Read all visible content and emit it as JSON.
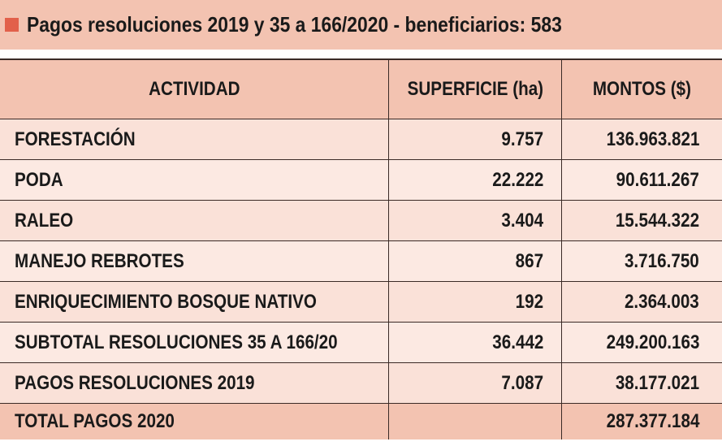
{
  "title": "Pagos resoluciones 2019 y 35 a 166/2020 - beneficiarios: 583",
  "colors": {
    "header_bg": "#f3c3b1",
    "row_bg_a": "#fae1d8",
    "row_bg_b": "#fce9e2",
    "accent_square": "#e2604a"
  },
  "table": {
    "headers": [
      "ACTIVIDAD",
      "SUPERFICIE (ha)",
      "MONTOS  ($)"
    ],
    "rows": [
      {
        "actividad": "FORESTACIÓN",
        "superficie": "9.757",
        "montos": "136.963.821"
      },
      {
        "actividad": "PODA",
        "superficie": "22.222",
        "montos": "90.611.267"
      },
      {
        "actividad": "RALEO",
        "superficie": "3.404",
        "montos": "15.544.322"
      },
      {
        "actividad": "MANEJO REBROTES",
        "superficie": "867",
        "montos": "3.716.750"
      },
      {
        "actividad": "ENRIQUECIMIENTO BOSQUE NATIVO",
        "superficie": "192",
        "montos": "2.364.003"
      },
      {
        "actividad": "SUBTOTAL RESOLUCIONES 35 A 166/20",
        "superficie": "36.442",
        "montos": "249.200.163"
      },
      {
        "actividad": "PAGOS RESOLUCIONES 2019",
        "superficie": "7.087",
        "montos": "38.177.021"
      }
    ],
    "total": {
      "actividad": "TOTAL PAGOS 2020",
      "superficie": "",
      "montos": "287.377.184"
    }
  }
}
